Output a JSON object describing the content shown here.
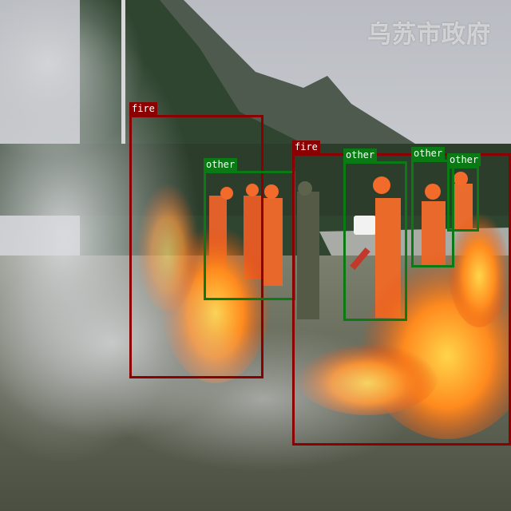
{
  "watermark": "乌苏市政府",
  "colors": {
    "fire": "#8b0000",
    "other": "#0a7a14"
  },
  "detections": [
    {
      "label": "fire"
    },
    {
      "label": "other"
    },
    {
      "label": "fire"
    },
    {
      "label": "other"
    },
    {
      "label": "other"
    },
    {
      "label": "other"
    }
  ]
}
